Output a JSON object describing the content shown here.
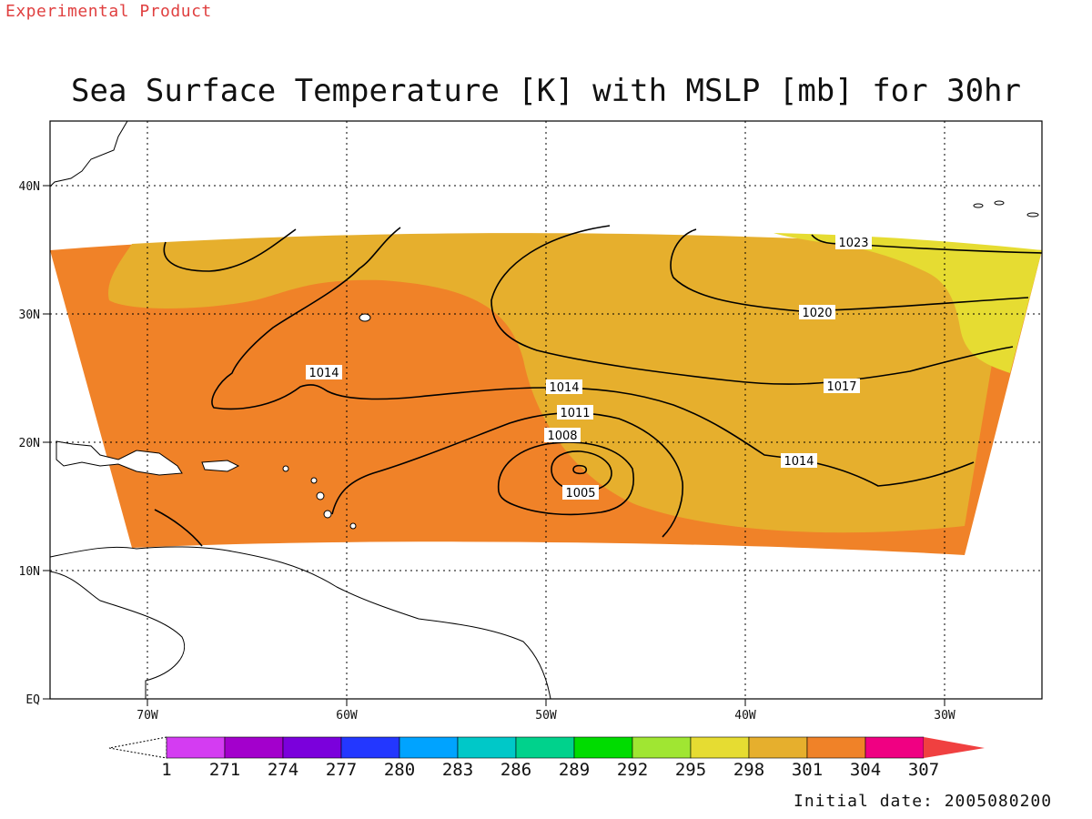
{
  "header": {
    "experimental_label": "Experimental Product",
    "title": "Sea Surface Temperature [K] with MSLP [mb] for 30hr"
  },
  "axes": {
    "lat_labels": [
      "EQ",
      "10N",
      "20N",
      "30N",
      "40N"
    ],
    "lon_labels": [
      "70W",
      "60W",
      "50W",
      "40W",
      "30W"
    ]
  },
  "contours": {
    "labels": [
      "1023",
      "1020",
      "1017",
      "1014",
      "1014",
      "1014",
      "1011",
      "1008",
      "1005"
    ]
  },
  "colorbar": {
    "labels": [
      "1",
      "271",
      "274",
      "277",
      "280",
      "283",
      "286",
      "289",
      "292",
      "295",
      "298",
      "301",
      "304",
      "307"
    ],
    "colors": [
      "#d43cf2",
      "#a300cc",
      "#7b00dc",
      "#2337ff",
      "#00a3ff",
      "#00c8c8",
      "#00d28c",
      "#00dc00",
      "#a0e632",
      "#e6dc32",
      "#e6af2d",
      "#f08228",
      "#f00082",
      "#f04040"
    ]
  },
  "footer": {
    "initial_date": "Initial date: 2005080200"
  }
}
